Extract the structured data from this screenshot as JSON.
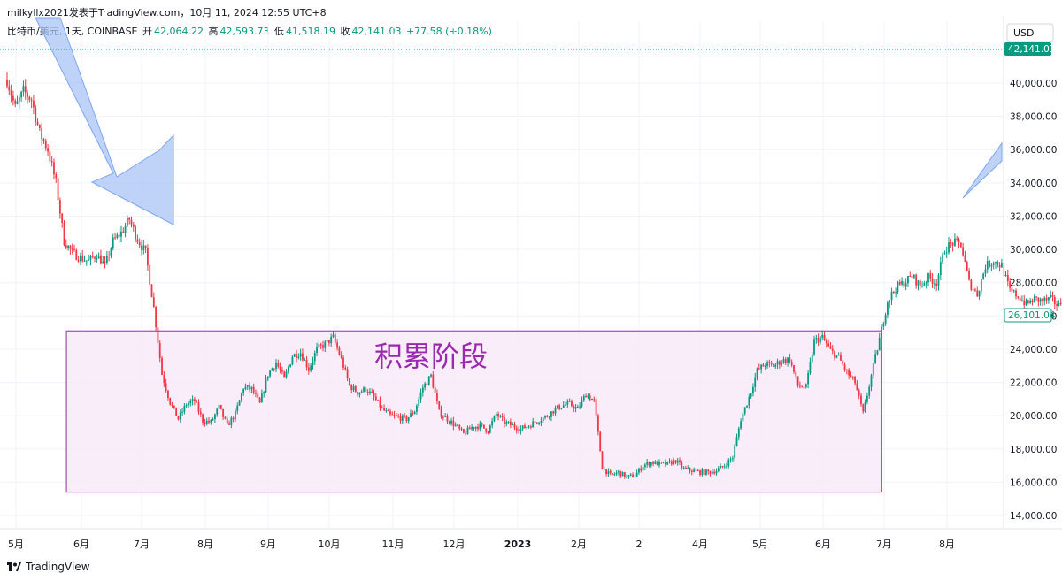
{
  "header": {
    "publisher": "milkyllx2021发表于TradingView.com，10月 11, 2024 12:55 UTC+8"
  },
  "ohlc": {
    "symbol": "比特币/美元, 1天, COINBASE",
    "open_label": "开",
    "open": "42,064.22",
    "high_label": "高",
    "high": "42,593.73",
    "low_label": "低",
    "low": "41,518.19",
    "close_label": "收",
    "close": "42,141.03",
    "change": "+77.58 (+0.18%)"
  },
  "price_axis": {
    "currency": "USD",
    "last_price": "42,141.03",
    "current_price": "26,101.04"
  },
  "annotation": {
    "zone_label": "积累阶段",
    "zone_low": 15400,
    "zone_high": 25100,
    "zone_start": "2022-05-26",
    "zone_end": "2023-06-30",
    "fill_color": "#f7e9f7",
    "border_color": "#9c27b0",
    "text_color": "#9c27b0"
  },
  "footer": {
    "brand": "TradingView"
  },
  "colors": {
    "up": "#089981",
    "down": "#f23645",
    "arrow": "#a9c3f5"
  },
  "chart_data": {
    "type": "candlestick",
    "title": "",
    "ylim": [
      13000,
      43000
    ],
    "y_ticks": [
      "14,000.00",
      "16,000.00",
      "18,000.00",
      "20,000.00",
      "22,000.00",
      "24,000.00",
      "26,000.00",
      "28,000.00",
      "30,000.00",
      "32,000.00",
      "34,000.00",
      "36,000.00",
      "38,000.00",
      "40,000.00"
    ],
    "x_ticks": [
      "5月",
      "6月",
      "7月",
      "8月",
      "9月",
      "10月",
      "11月",
      "12月",
      "2023",
      "2月",
      "2",
      "4月",
      "5月",
      "6月",
      "7月",
      "8月"
    ],
    "grid": true,
    "close_path_points": [
      [
        0,
        40200
      ],
      [
        4,
        38500
      ],
      [
        8,
        39500
      ],
      [
        12,
        39000
      ],
      [
        16,
        37000
      ],
      [
        20,
        36000
      ],
      [
        24,
        34000
      ],
      [
        28,
        30500
      ],
      [
        32,
        29800
      ],
      [
        36,
        29500
      ],
      [
        40,
        29300
      ],
      [
        44,
        29700
      ],
      [
        48,
        29000
      ],
      [
        52,
        30500
      ],
      [
        56,
        31000
      ],
      [
        60,
        31800
      ],
      [
        64,
        30600
      ],
      [
        68,
        29800
      ],
      [
        72,
        26500
      ],
      [
        76,
        22500
      ],
      [
        80,
        20800
      ],
      [
        84,
        19800
      ],
      [
        88,
        20700
      ],
      [
        92,
        20900
      ],
      [
        96,
        19700
      ],
      [
        100,
        19600
      ],
      [
        104,
        20500
      ],
      [
        108,
        19400
      ],
      [
        112,
        20100
      ],
      [
        116,
        21700
      ],
      [
        120,
        21600
      ],
      [
        124,
        20700
      ],
      [
        128,
        22500
      ],
      [
        132,
        23200
      ],
      [
        136,
        22200
      ],
      [
        140,
        23600
      ],
      [
        144,
        23800
      ],
      [
        148,
        22800
      ],
      [
        152,
        24000
      ],
      [
        156,
        24300
      ],
      [
        160,
        24700
      ],
      [
        164,
        23400
      ],
      [
        168,
        21800
      ],
      [
        172,
        21400
      ],
      [
        176,
        21600
      ],
      [
        180,
        21100
      ],
      [
        184,
        20400
      ],
      [
        188,
        20000
      ],
      [
        192,
        19900
      ],
      [
        196,
        19800
      ],
      [
        200,
        20300
      ],
      [
        204,
        21700
      ],
      [
        208,
        22400
      ],
      [
        212,
        20200
      ],
      [
        216,
        19800
      ],
      [
        220,
        19400
      ],
      [
        224,
        18900
      ],
      [
        228,
        19300
      ],
      [
        232,
        19400
      ],
      [
        236,
        19100
      ],
      [
        240,
        20100
      ],
      [
        244,
        19600
      ],
      [
        248,
        19400
      ],
      [
        252,
        19200
      ],
      [
        256,
        19400
      ],
      [
        260,
        19700
      ],
      [
        264,
        19900
      ],
      [
        268,
        20300
      ],
      [
        272,
        20600
      ],
      [
        276,
        20700
      ],
      [
        280,
        20400
      ],
      [
        284,
        21300
      ],
      [
        288,
        20900
      ],
      [
        292,
        16900
      ],
      [
        296,
        16400
      ],
      [
        300,
        16600
      ],
      [
        304,
        16300
      ],
      [
        308,
        16400
      ],
      [
        312,
        17000
      ],
      [
        316,
        17200
      ],
      [
        320,
        17100
      ],
      [
        324,
        17100
      ],
      [
        328,
        17300
      ],
      [
        332,
        16800
      ],
      [
        336,
        16700
      ],
      [
        340,
        16600
      ],
      [
        344,
        16600
      ],
      [
        348,
        16700
      ],
      [
        352,
        17000
      ],
      [
        356,
        17500
      ],
      [
        360,
        19800
      ],
      [
        364,
        21100
      ],
      [
        368,
        22700
      ],
      [
        372,
        23100
      ],
      [
        376,
        23000
      ],
      [
        380,
        23300
      ],
      [
        384,
        23400
      ],
      [
        388,
        21800
      ],
      [
        392,
        21700
      ],
      [
        396,
        24500
      ],
      [
        400,
        24700
      ],
      [
        404,
        23900
      ],
      [
        408,
        23500
      ],
      [
        412,
        22600
      ],
      [
        416,
        22000
      ],
      [
        420,
        20100
      ],
      [
        424,
        22400
      ],
      [
        428,
        24600
      ],
      [
        432,
        26900
      ],
      [
        436,
        27700
      ],
      [
        440,
        28000
      ],
      [
        444,
        28400
      ],
      [
        448,
        27800
      ],
      [
        452,
        28300
      ],
      [
        456,
        28000
      ],
      [
        460,
        30000
      ],
      [
        464,
        30400
      ],
      [
        468,
        30300
      ],
      [
        472,
        28000
      ],
      [
        476,
        27300
      ],
      [
        480,
        29000
      ],
      [
        484,
        29300
      ],
      [
        488,
        29000
      ],
      [
        492,
        27500
      ],
      [
        496,
        27200
      ],
      [
        500,
        26700
      ],
      [
        504,
        27000
      ],
      [
        508,
        26900
      ],
      [
        512,
        27000
      ],
      [
        516,
        26600
      ],
      [
        520,
        27700
      ],
      [
        524,
        27200
      ],
      [
        528,
        26900
      ],
      [
        532,
        25900
      ],
      [
        536,
        26300
      ],
      [
        540,
        25500
      ],
      [
        544,
        26300
      ],
      [
        548,
        28000
      ],
      [
        552,
        30500
      ],
      [
        556,
        30800
      ],
      [
        560,
        30300
      ],
      [
        564,
        30500
      ],
      [
        568,
        31200
      ],
      [
        572,
        30300
      ],
      [
        576,
        30400
      ],
      [
        580,
        30100
      ],
      [
        584,
        29900
      ],
      [
        588,
        29500
      ],
      [
        592,
        29400
      ],
      [
        596,
        29300
      ],
      [
        600,
        29200
      ],
      [
        604,
        29100
      ],
      [
        608,
        29300
      ],
      [
        612,
        29400
      ],
      [
        616,
        29000
      ],
      [
        620,
        28500
      ],
      [
        624,
        26100
      ],
      [
        628,
        26100
      ],
      [
        632,
        26000
      ],
      [
        636,
        26100
      ]
    ]
  }
}
